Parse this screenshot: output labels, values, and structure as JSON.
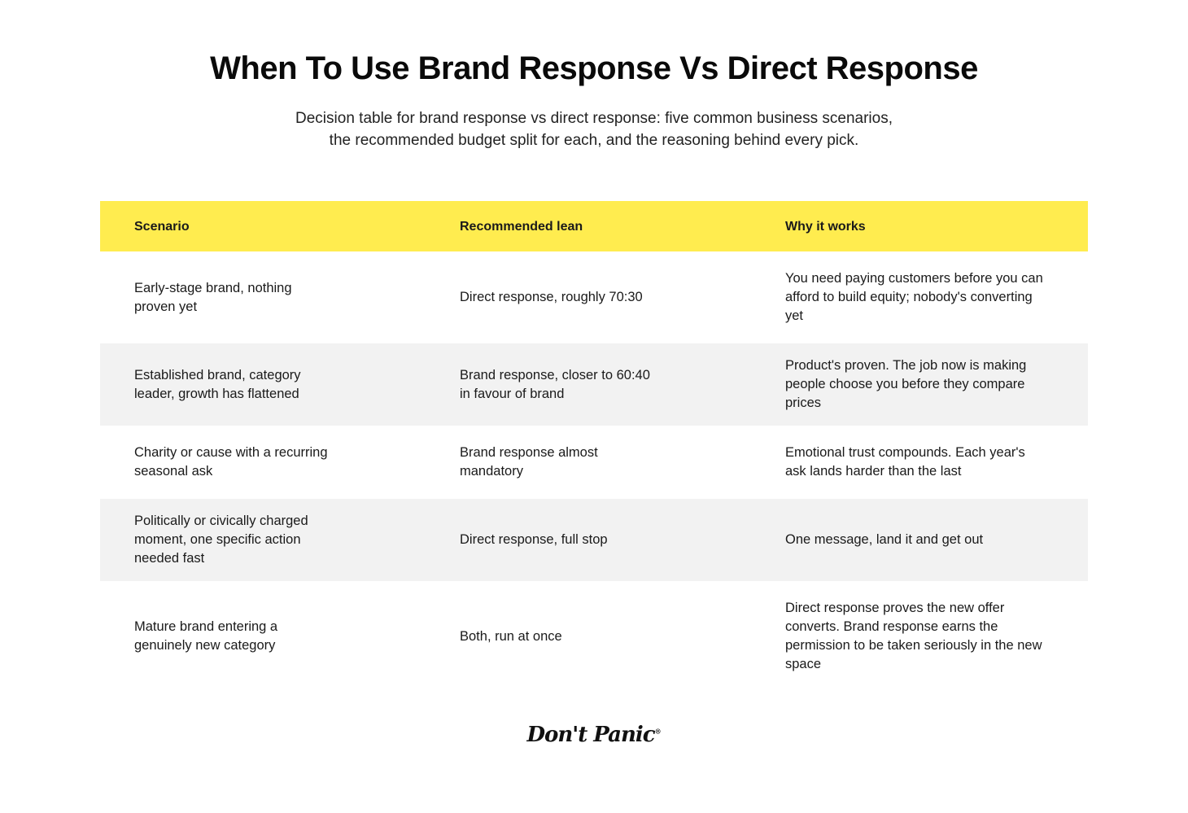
{
  "header": {
    "title": "When To Use Brand Response Vs Direct Response",
    "subtitle": "Decision table for brand response vs direct response: five common business scenarios, the recommended budget split for each, and the reasoning behind every pick."
  },
  "table": {
    "columns": [
      "Scenario",
      "Recommended lean",
      "Why it works"
    ],
    "rows": [
      {
        "scenario": "Early-stage brand, nothing proven yet",
        "lean": "Direct response, roughly 70:30",
        "why": "You need paying customers before you can afford to build equity; nobody's converting yet"
      },
      {
        "scenario": "Established brand, category leader, growth has flattened",
        "lean": "Brand response, closer to 60:40 in favour of brand",
        "why": "Product's proven. The job now is making people choose you before they compare prices"
      },
      {
        "scenario": "Charity or cause with a recurring seasonal ask",
        "lean": "Brand response almost mandatory",
        "why": "Emotional trust compounds. Each year's ask lands harder than the last"
      },
      {
        "scenario": "Politically or civically charged moment, one specific action needed fast",
        "lean": "Direct response, full stop",
        "why": "One message, land it and get out"
      },
      {
        "scenario": "Mature brand entering a genuinely new category",
        "lean": "Both, run at once",
        "why": "Direct response proves the new offer converts. Brand response earns the permission to be taken seriously in the new space"
      }
    ]
  },
  "colors": {
    "header_background": "#ffec4f",
    "alt_row_background": "#f2f2f2"
  },
  "footer": {
    "logo_text": "Don't Panic",
    "logo_mark": "®"
  }
}
